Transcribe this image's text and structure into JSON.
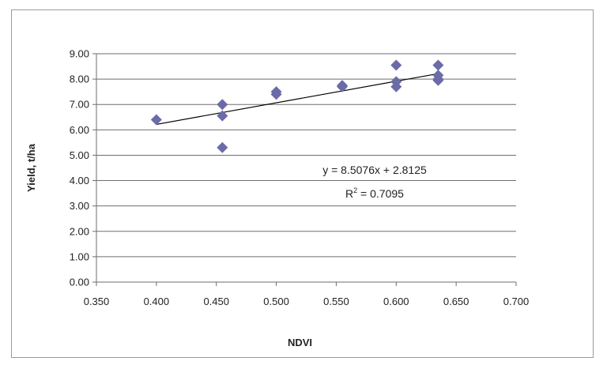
{
  "chart_data": {
    "type": "scatter",
    "title": "",
    "xlabel": "NDVI",
    "ylabel": "Yield,  t/ha",
    "xlim": [
      0.35,
      0.7
    ],
    "ylim": [
      0.0,
      9.0
    ],
    "x_ticks": [
      "0.350",
      "0.400",
      "0.450",
      "0.500",
      "0.550",
      "0.600",
      "0.650",
      "0.700"
    ],
    "y_ticks": [
      "0.00",
      "1.00",
      "2.00",
      "3.00",
      "4.00",
      "5.00",
      "6.00",
      "7.00",
      "8.00",
      "9.00"
    ],
    "grid": "horizontal",
    "legend": "none",
    "series": [
      {
        "marker": "diamond",
        "color": "#6b6ba8",
        "points": [
          {
            "x": 0.4,
            "y": 6.4
          },
          {
            "x": 0.455,
            "y": 7.0
          },
          {
            "x": 0.455,
            "y": 6.55
          },
          {
            "x": 0.455,
            "y": 5.3
          },
          {
            "x": 0.5,
            "y": 7.5
          },
          {
            "x": 0.5,
            "y": 7.4
          },
          {
            "x": 0.555,
            "y": 7.75
          },
          {
            "x": 0.555,
            "y": 7.7
          },
          {
            "x": 0.6,
            "y": 8.55
          },
          {
            "x": 0.6,
            "y": 7.9
          },
          {
            "x": 0.6,
            "y": 7.7
          },
          {
            "x": 0.635,
            "y": 8.55
          },
          {
            "x": 0.635,
            "y": 8.15
          },
          {
            "x": 0.635,
            "y": 8.0
          },
          {
            "x": 0.635,
            "y": 7.95
          }
        ]
      }
    ],
    "trendline": {
      "slope": 8.5076,
      "intercept": 2.8125,
      "x_range": [
        0.4,
        0.635
      ],
      "color": "#000000"
    },
    "annotations": {
      "equation": "y = 8.5076x + 2.8125",
      "r2_prefix": "R",
      "r2_sup": "2",
      "r2_suffix": " = 0.7095"
    }
  }
}
